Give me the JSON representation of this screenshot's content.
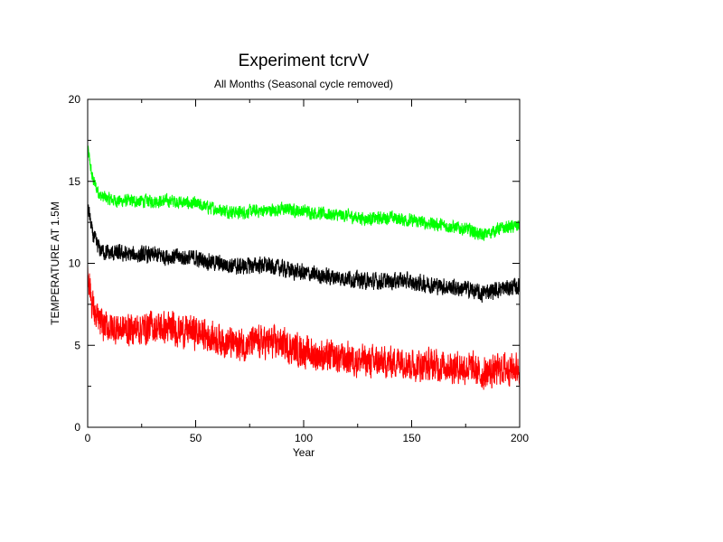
{
  "chart_data": {
    "type": "line",
    "title": "Experiment tcrvV",
    "subtitle": "All Months (Seasonal cycle removed)",
    "xlabel": "Year",
    "ylabel": "TEMPERATURE AT 1.5M",
    "xlim": [
      0,
      200
    ],
    "ylim": [
      0,
      20
    ],
    "xticks": [
      0,
      50,
      100,
      150,
      200
    ],
    "yticks": [
      0,
      5,
      10,
      15,
      20
    ],
    "grid": false,
    "legend": "none",
    "series": [
      {
        "color": "#00ff00",
        "noise_amplitude": 0.35,
        "x": [
          0,
          1,
          2,
          4,
          6,
          10,
          15,
          20,
          30,
          40,
          50,
          60,
          70,
          80,
          90,
          100,
          110,
          120,
          130,
          140,
          145,
          150,
          160,
          170,
          178,
          182,
          185,
          190,
          195,
          200
        ],
        "y": [
          17.0,
          16.2,
          15.3,
          14.6,
          14.1,
          13.9,
          13.8,
          13.8,
          13.8,
          13.8,
          13.6,
          13.3,
          13.1,
          13.2,
          13.3,
          13.2,
          13.0,
          12.9,
          12.7,
          12.8,
          12.7,
          12.6,
          12.4,
          12.2,
          12.0,
          11.7,
          11.8,
          12.1,
          12.2,
          12.3
        ]
      },
      {
        "color": "#000000",
        "noise_amplitude": 0.45,
        "x": [
          0,
          1,
          2,
          4,
          6,
          10,
          15,
          20,
          30,
          40,
          50,
          60,
          70,
          80,
          90,
          100,
          110,
          120,
          130,
          140,
          145,
          150,
          160,
          170,
          178,
          182,
          185,
          190,
          195,
          200
        ],
        "y": [
          13.5,
          12.8,
          11.9,
          11.2,
          10.8,
          10.6,
          10.6,
          10.5,
          10.5,
          10.4,
          10.3,
          10.0,
          9.8,
          9.9,
          9.7,
          9.4,
          9.2,
          9.1,
          8.9,
          8.9,
          9.0,
          8.8,
          8.7,
          8.5,
          8.4,
          8.1,
          8.3,
          8.4,
          8.5,
          8.6
        ]
      },
      {
        "color": "#ff0000",
        "noise_amplitude": 0.85,
        "x": [
          0,
          1,
          2,
          4,
          6,
          10,
          15,
          20,
          30,
          40,
          50,
          60,
          70,
          80,
          90,
          100,
          110,
          120,
          130,
          140,
          145,
          150,
          160,
          170,
          178,
          182,
          185,
          190,
          195,
          200
        ],
        "y": [
          9.5,
          8.7,
          7.6,
          6.6,
          6.3,
          6.1,
          6.0,
          6.0,
          6.1,
          6.0,
          5.8,
          5.4,
          5.0,
          5.2,
          5.1,
          4.6,
          4.3,
          4.2,
          4.0,
          3.9,
          4.2,
          3.8,
          3.8,
          3.7,
          3.6,
          3.2,
          3.3,
          3.5,
          3.6,
          3.6
        ]
      }
    ]
  }
}
